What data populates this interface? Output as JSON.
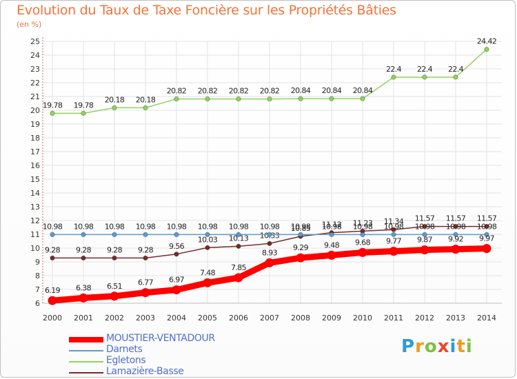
{
  "title": "Evolution du Taux de Taxe Foncière sur les Propriétés Bâties",
  "subtitle": "(en %)",
  "logo": {
    "letters": [
      "P",
      "r",
      "o",
      "x",
      "i",
      "t",
      "i"
    ],
    "colors": [
      "#2e9bd6",
      "#f29a1c",
      "#7cc142",
      "#e8462d",
      "#2e9bd6",
      "#f29a1c",
      "#7cc142"
    ]
  },
  "chart_data": {
    "type": "line",
    "title": "Evolution du Taux de Taxe Foncière sur les Propriétés Bâties",
    "ylabel": "(en %)",
    "xlabel": "",
    "ylim": [
      6,
      25
    ],
    "yticks": [
      6,
      7,
      8,
      9,
      10,
      11,
      12,
      13,
      14,
      15,
      16,
      17,
      18,
      19,
      20,
      21,
      22,
      23,
      24,
      25
    ],
    "categories": [
      "2000",
      "2001",
      "2002",
      "2003",
      "2004",
      "2005",
      "2006",
      "2007",
      "2008",
      "2009",
      "2010",
      "2011",
      "2012",
      "2013",
      "2014"
    ],
    "series": [
      {
        "name": "Lamazière-Basse",
        "color": "#7a2a2a",
        "values": [
          9.28,
          9.28,
          9.28,
          9.28,
          9.56,
          10.03,
          10.13,
          10.33,
          10.85,
          11.12,
          11.23,
          11.34,
          11.57,
          11.57,
          11.57
        ],
        "labels": [
          "9.28",
          "9.28",
          "9.28",
          "9.28",
          "9.56",
          "10.03",
          "10.13",
          "10.33",
          "10.85",
          "11.12",
          "11.23",
          "11.34",
          "11.57",
          "11.57",
          "11.57"
        ]
      },
      {
        "name": "Egletons",
        "color": "#8ed45b",
        "values": [
          19.78,
          19.78,
          20.18,
          20.18,
          20.82,
          20.82,
          20.82,
          20.82,
          20.84,
          20.84,
          20.84,
          22.4,
          22.4,
          22.4,
          24.42
        ],
        "labels": [
          "19.78",
          "19.78",
          "20.18",
          "20.18",
          "20.82",
          "20.82",
          "20.82",
          "20.82",
          "20.84",
          "20.84",
          "20.84",
          "22.4",
          "22.4",
          "22.4",
          "24.42"
        ]
      },
      {
        "name": "Darnets",
        "color": "#5b9bd1",
        "values": [
          10.98,
          10.98,
          10.98,
          10.98,
          10.98,
          10.98,
          10.98,
          10.98,
          10.98,
          10.98,
          10.98,
          10.98,
          10.98,
          10.98,
          10.98
        ],
        "labels": [
          "10.98",
          "10.98",
          "10.98",
          "10.98",
          "10.98",
          "10.98",
          "10.98",
          "10.98",
          "10.98",
          "10.98",
          "10.98",
          "10.98",
          "10.98",
          "10.98",
          "10.98"
        ]
      },
      {
        "name": "MOUSTIER-VENTADOUR",
        "color": "#ff0000",
        "values": [
          6.19,
          6.38,
          6.51,
          6.77,
          6.97,
          7.48,
          7.85,
          8.93,
          9.29,
          9.48,
          9.68,
          9.77,
          9.87,
          9.92,
          9.97
        ],
        "labels": [
          "6.19",
          "6.38",
          "6.51",
          "6.77",
          "6.97",
          "7.48",
          "7.85",
          "8.93",
          "9.29",
          "9.48",
          "9.68",
          "9.77",
          "9.87",
          "9.92",
          "9.97"
        ]
      }
    ],
    "legend": [
      "MOUSTIER-VENTADOUR",
      "Darnets",
      "Egletons",
      "Lamazière-Basse"
    ]
  }
}
